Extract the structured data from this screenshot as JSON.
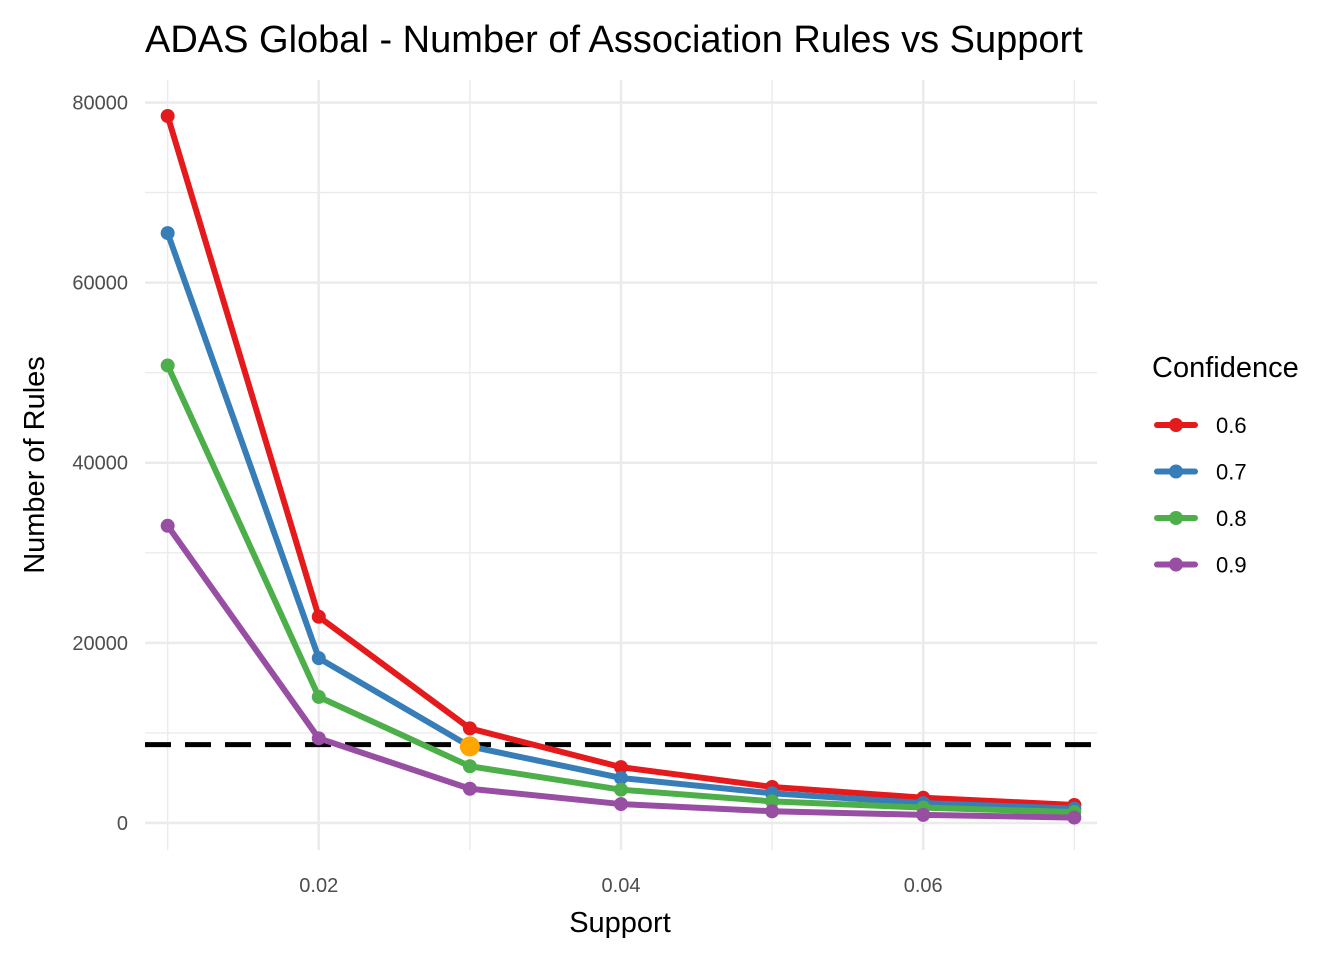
{
  "chart_data": {
    "type": "line",
    "title": "ADAS Global - Number of Association Rules vs Support",
    "xlabel": "Support",
    "ylabel": "Number of Rules",
    "x": [
      0.01,
      0.02,
      0.03,
      0.04,
      0.05,
      0.06,
      0.07
    ],
    "xlim": [
      0.0085,
      0.0715
    ],
    "ylim": [
      -3000,
      82500
    ],
    "x_ticks": [
      0.02,
      0.04,
      0.06
    ],
    "x_tick_labels": [
      "0.02",
      "0.04",
      "0.06"
    ],
    "y_ticks": [
      0,
      20000,
      40000,
      60000,
      80000
    ],
    "y_tick_labels": [
      "0",
      "20000",
      "40000",
      "60000",
      "80000"
    ],
    "grid": true,
    "legend": {
      "title": "Confidence",
      "position": "right"
    },
    "series": [
      {
        "name": "0.6",
        "color": "#e41a1c",
        "values": [
          78500,
          22900,
          10500,
          6200,
          4000,
          2800,
          2000
        ]
      },
      {
        "name": "0.7",
        "color": "#377eb8",
        "values": [
          65500,
          18300,
          8500,
          5000,
          3300,
          2200,
          1600
        ]
      },
      {
        "name": "0.8",
        "color": "#4daf4a",
        "values": [
          50800,
          14000,
          6300,
          3700,
          2400,
          1700,
          1200
        ]
      },
      {
        "name": "0.9",
        "color": "#984ea3",
        "values": [
          33000,
          9400,
          3800,
          2100,
          1300,
          900,
          600
        ]
      }
    ],
    "reference_line": {
      "type": "hline",
      "y": 8700,
      "style": "dashed",
      "color": "#000000"
    },
    "highlight_point": {
      "x": 0.03,
      "y": 8500,
      "color": "#ffa500"
    }
  }
}
